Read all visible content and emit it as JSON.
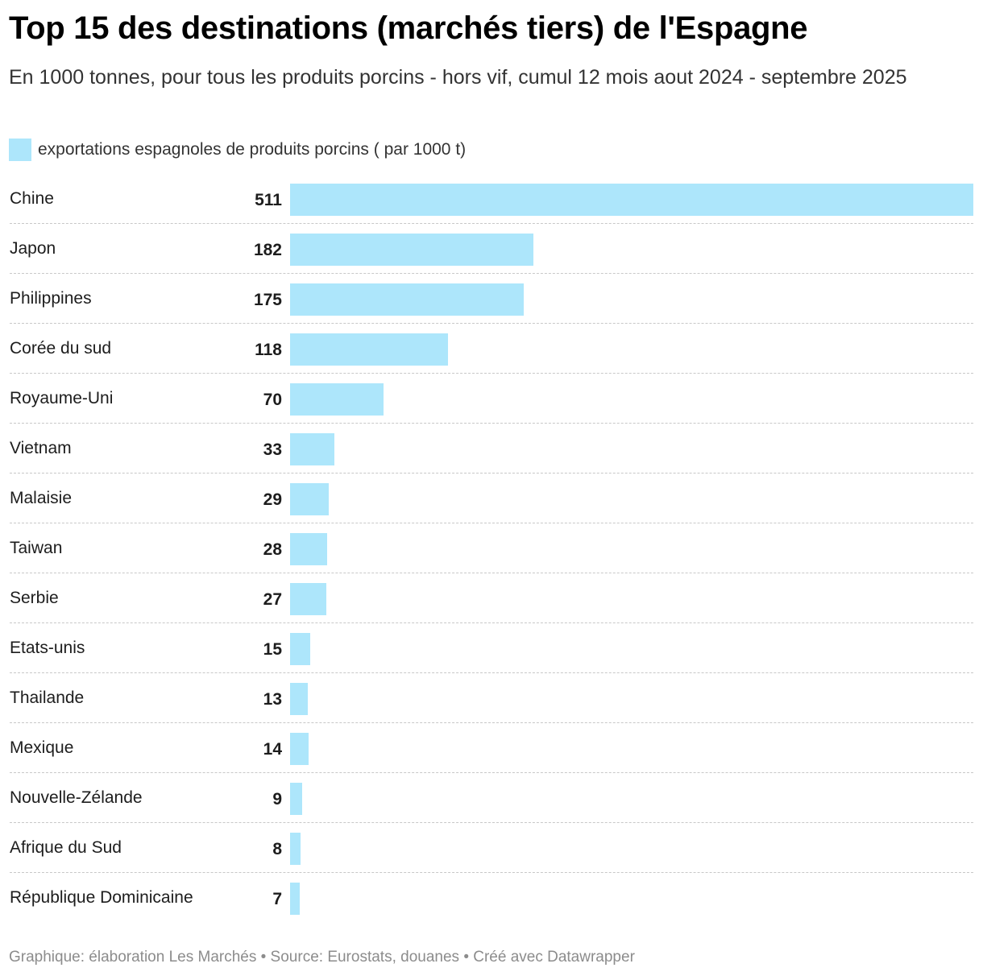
{
  "chart_data": {
    "type": "bar",
    "orientation": "horizontal",
    "title": "Top 15 des destinations (marchés tiers) de l'Espagne",
    "subtitle": "En 1000 tonnes, pour tous les produits porcins - hors vif, cumul 12 mois aout 2024 - septembre 2025",
    "categories": [
      "Chine",
      "Japon",
      "Philippines",
      "Corée du sud",
      "Royaume-Uni",
      "Vietnam",
      "Malaisie",
      "Taiwan",
      "Serbie",
      "Etats-unis",
      "Thailande",
      "Mexique",
      "Nouvelle-Zélande",
      "Afrique du Sud",
      "République Dominicaine"
    ],
    "series": [
      {
        "name": "exportations espagnoles de produits porcins ( par 1000 t)",
        "values": [
          511,
          182,
          175,
          118,
          70,
          33,
          29,
          28,
          27,
          15,
          13,
          14,
          9,
          8,
          7
        ],
        "color": "#ade6fb"
      }
    ],
    "xlim": [
      0,
      511
    ],
    "grid": false,
    "legend": "top-left",
    "data_labels": true
  },
  "footer": "Graphique: élaboration Les Marchés • Source: Eurostats, douanes • Créé avec Datawrapper"
}
